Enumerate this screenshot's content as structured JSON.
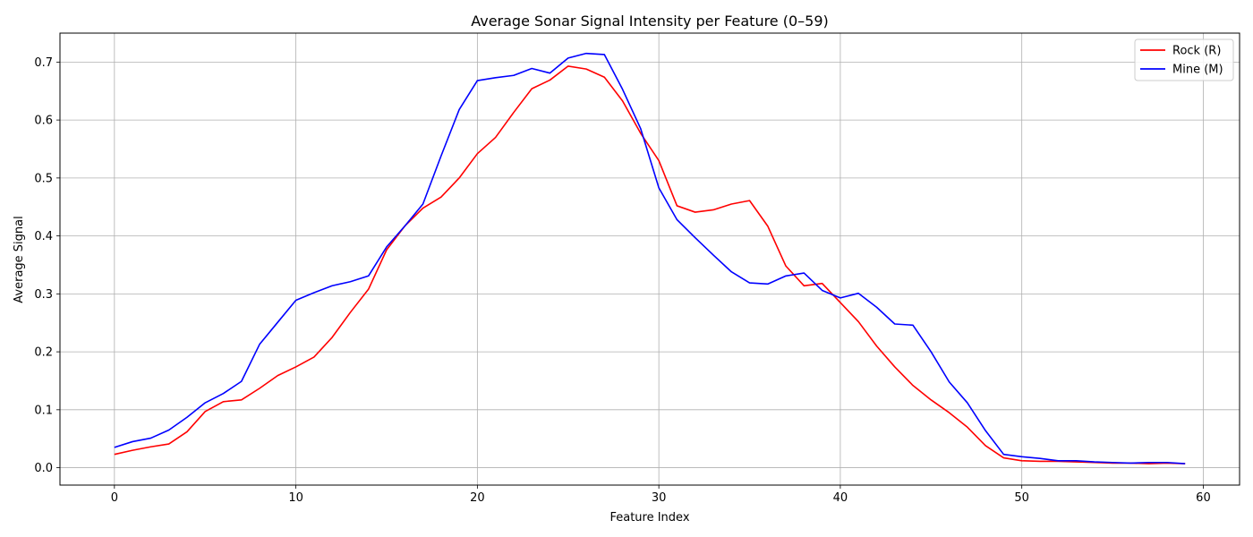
{
  "chart_data": {
    "type": "line",
    "title": "Average Sonar Signal Intensity per Feature (0–59)",
    "xlabel": "Feature Index",
    "ylabel": "Average Signal",
    "xlim": [
      -3,
      62
    ],
    "ylim": [
      -0.03,
      0.75
    ],
    "xticks": [
      0,
      10,
      20,
      30,
      40,
      50,
      60
    ],
    "yticks": [
      0.0,
      0.1,
      0.2,
      0.3,
      0.4,
      0.5,
      0.6,
      0.7
    ],
    "grid": true,
    "legend_position": "top-right",
    "x": [
      0,
      1,
      2,
      3,
      4,
      5,
      6,
      7,
      8,
      9,
      10,
      11,
      12,
      13,
      14,
      15,
      16,
      17,
      18,
      19,
      20,
      21,
      22,
      23,
      24,
      25,
      26,
      27,
      28,
      29,
      30,
      31,
      32,
      33,
      34,
      35,
      36,
      37,
      38,
      39,
      40,
      41,
      42,
      43,
      44,
      45,
      46,
      47,
      48,
      49,
      50,
      51,
      52,
      53,
      54,
      55,
      56,
      57,
      58,
      59
    ],
    "series": [
      {
        "name": "Rock (R)",
        "color": "#ff0000",
        "values": [
          0.023,
          0.03,
          0.036,
          0.041,
          0.062,
          0.097,
          0.114,
          0.117,
          0.137,
          0.159,
          0.174,
          0.191,
          0.225,
          0.268,
          0.308,
          0.376,
          0.417,
          0.448,
          0.467,
          0.5,
          0.542,
          0.57,
          0.613,
          0.654,
          0.669,
          0.693,
          0.688,
          0.674,
          0.633,
          0.577,
          0.53,
          0.452,
          0.441,
          0.445,
          0.455,
          0.461,
          0.417,
          0.348,
          0.314,
          0.318,
          0.285,
          0.252,
          0.21,
          0.174,
          0.142,
          0.117,
          0.095,
          0.07,
          0.038,
          0.017,
          0.012,
          0.011,
          0.011,
          0.01,
          0.009,
          0.008,
          0.008,
          0.007,
          0.008,
          0.007
        ]
      },
      {
        "name": "Mine (M)",
        "color": "#0000ff",
        "values": [
          0.035,
          0.045,
          0.051,
          0.065,
          0.087,
          0.112,
          0.128,
          0.149,
          0.213,
          0.251,
          0.289,
          0.302,
          0.314,
          0.321,
          0.331,
          0.381,
          0.417,
          0.455,
          0.538,
          0.618,
          0.668,
          0.673,
          0.677,
          0.689,
          0.681,
          0.707,
          0.715,
          0.713,
          0.653,
          0.585,
          0.483,
          0.428,
          0.397,
          0.367,
          0.338,
          0.319,
          0.317,
          0.331,
          0.336,
          0.306,
          0.293,
          0.301,
          0.277,
          0.248,
          0.246,
          0.2,
          0.148,
          0.112,
          0.064,
          0.023,
          0.019,
          0.016,
          0.012,
          0.012,
          0.01,
          0.009,
          0.008,
          0.009,
          0.009,
          0.007
        ]
      }
    ]
  }
}
